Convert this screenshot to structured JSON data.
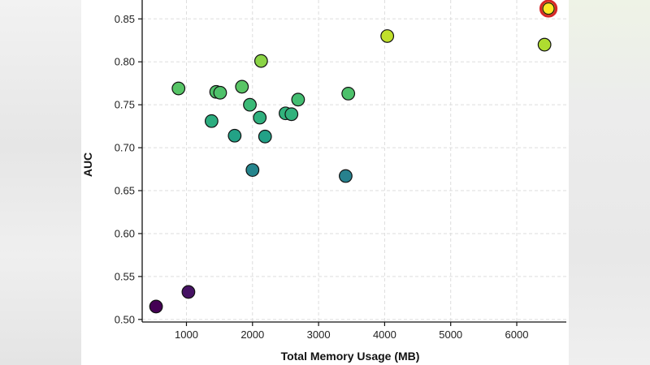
{
  "chart_data": {
    "type": "scatter",
    "xlabel": "Total Memory Usage (MB)",
    "ylabel": "AUC",
    "xlim": [
      330,
      6750
    ],
    "ylim": [
      0.497,
      0.872
    ],
    "x_ticks": [
      1000,
      2000,
      3000,
      4000,
      5000,
      6000
    ],
    "y_ticks": [
      0.5,
      0.55,
      0.6,
      0.65,
      0.7,
      0.75,
      0.8,
      0.85
    ],
    "x_tick_labels": [
      "1000",
      "2000",
      "3000",
      "4000",
      "5000",
      "6000"
    ],
    "y_tick_labels": [
      "0.50",
      "0.55",
      "0.60",
      "0.65",
      "0.70",
      "0.75",
      "0.80",
      "0.85"
    ],
    "grid": true,
    "color_scale": "viridis",
    "color_range": [
      0.515,
      0.862
    ],
    "highlight_color": "#d62728",
    "points": [
      {
        "x": 540,
        "y": 0.515
      },
      {
        "x": 1030,
        "y": 0.532
      },
      {
        "x": 880,
        "y": 0.769
      },
      {
        "x": 1380,
        "y": 0.731
      },
      {
        "x": 1450,
        "y": 0.765
      },
      {
        "x": 1510,
        "y": 0.764
      },
      {
        "x": 1730,
        "y": 0.714
      },
      {
        "x": 1840,
        "y": 0.771
      },
      {
        "x": 1960,
        "y": 0.75
      },
      {
        "x": 2000,
        "y": 0.674
      },
      {
        "x": 2110,
        "y": 0.735
      },
      {
        "x": 2130,
        "y": 0.801
      },
      {
        "x": 2190,
        "y": 0.713
      },
      {
        "x": 2500,
        "y": 0.74
      },
      {
        "x": 2590,
        "y": 0.739
      },
      {
        "x": 2690,
        "y": 0.756
      },
      {
        "x": 3410,
        "y": 0.667
      },
      {
        "x": 3450,
        "y": 0.763
      },
      {
        "x": 4040,
        "y": 0.83
      },
      {
        "x": 6420,
        "y": 0.82
      },
      {
        "x": 6480,
        "y": 0.862,
        "highlight": true
      }
    ]
  }
}
